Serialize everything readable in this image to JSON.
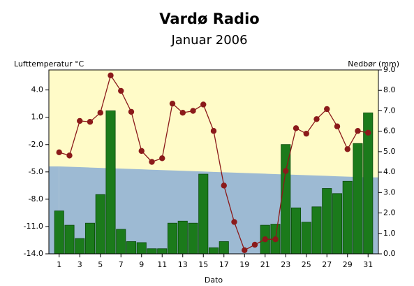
{
  "chart_data": {
    "type": "bar",
    "title": "Vardø Radio",
    "subtitle": "Januar 2006",
    "ylabel": "Lufttemperatur °C",
    "y2label": "Nedbør (mm)",
    "xlabel": "Dato",
    "x": [
      1,
      2,
      3,
      4,
      5,
      6,
      7,
      8,
      9,
      10,
      11,
      12,
      13,
      14,
      15,
      16,
      17,
      18,
      19,
      20,
      21,
      22,
      23,
      24,
      25,
      26,
      27,
      28,
      29,
      30,
      31
    ],
    "xlim": [
      0,
      32
    ],
    "xticks": [
      1,
      3,
      5,
      7,
      9,
      11,
      13,
      15,
      17,
      19,
      21,
      23,
      25,
      27,
      29,
      31
    ],
    "ylim": [
      -14,
      6.2
    ],
    "yticks": [
      {
        "value": -14,
        "label": "-14.0"
      },
      {
        "value": -11,
        "label": "-11.0"
      },
      {
        "value": -8,
        "label": "-8.0"
      },
      {
        "value": -5,
        "label": "-5.0"
      },
      {
        "value": -2,
        "label": "-2.0"
      },
      {
        "value": 1,
        "label": "1.0"
      },
      {
        "value": 4,
        "label": "4.0"
      }
    ],
    "y2lim": [
      0,
      9
    ],
    "y2ticks": [
      {
        "value": 0,
        "label": "0.0"
      },
      {
        "value": 1,
        "label": "1.0"
      },
      {
        "value": 2,
        "label": "2.0"
      },
      {
        "value": 3,
        "label": "3.0"
      },
      {
        "value": 4,
        "label": "4.0"
      },
      {
        "value": 5,
        "label": "5.0"
      },
      {
        "value": 6,
        "label": "6.0"
      },
      {
        "value": 7,
        "label": "7.0"
      },
      {
        "value": 8,
        "label": "8.0"
      },
      {
        "value": 9,
        "label": "9.0"
      }
    ],
    "background": "#fffbc8",
    "series": [
      {
        "type": "area",
        "color": "#9dbad3",
        "axis": "y",
        "values": [
          -4.4,
          -4.44,
          -4.48,
          -4.52,
          -4.56,
          -4.6,
          -4.64,
          -4.68,
          -4.72,
          -4.76,
          -4.8,
          -4.84,
          -4.88,
          -4.92,
          -4.96,
          -5.0,
          -5.04,
          -5.08,
          -5.12,
          -5.16,
          -5.2,
          -5.24,
          -5.28,
          -5.32,
          -5.36,
          -5.4,
          -5.44,
          -5.48,
          -5.52,
          -5.56,
          -5.6
        ]
      },
      {
        "type": "bar",
        "color": "#1b7a1b",
        "axis": "y2",
        "values": [
          2.1,
          1.4,
          0.75,
          1.5,
          2.9,
          7.0,
          1.2,
          0.6,
          0.55,
          0.25,
          0.25,
          1.5,
          1.6,
          1.5,
          3.9,
          0.3,
          0.6,
          0,
          0,
          0,
          1.4,
          1.45,
          5.35,
          2.25,
          1.55,
          2.3,
          3.2,
          2.95,
          3.55,
          5.4,
          6.9
        ]
      },
      {
        "type": "line",
        "color": "#8b1a1a",
        "axis": "y",
        "values": [
          -2.85,
          -3.2,
          0.6,
          0.5,
          1.5,
          5.6,
          3.9,
          1.6,
          -2.7,
          -3.9,
          -3.5,
          2.5,
          1.5,
          1.7,
          2.4,
          -0.5,
          -6.5,
          -10.5,
          -13.6,
          -13.0,
          -12.4,
          -12.4,
          -4.9,
          -0.2,
          -0.8,
          0.8,
          1.9,
          0.0,
          -2.5,
          -0.5,
          -0.7
        ]
      }
    ]
  }
}
